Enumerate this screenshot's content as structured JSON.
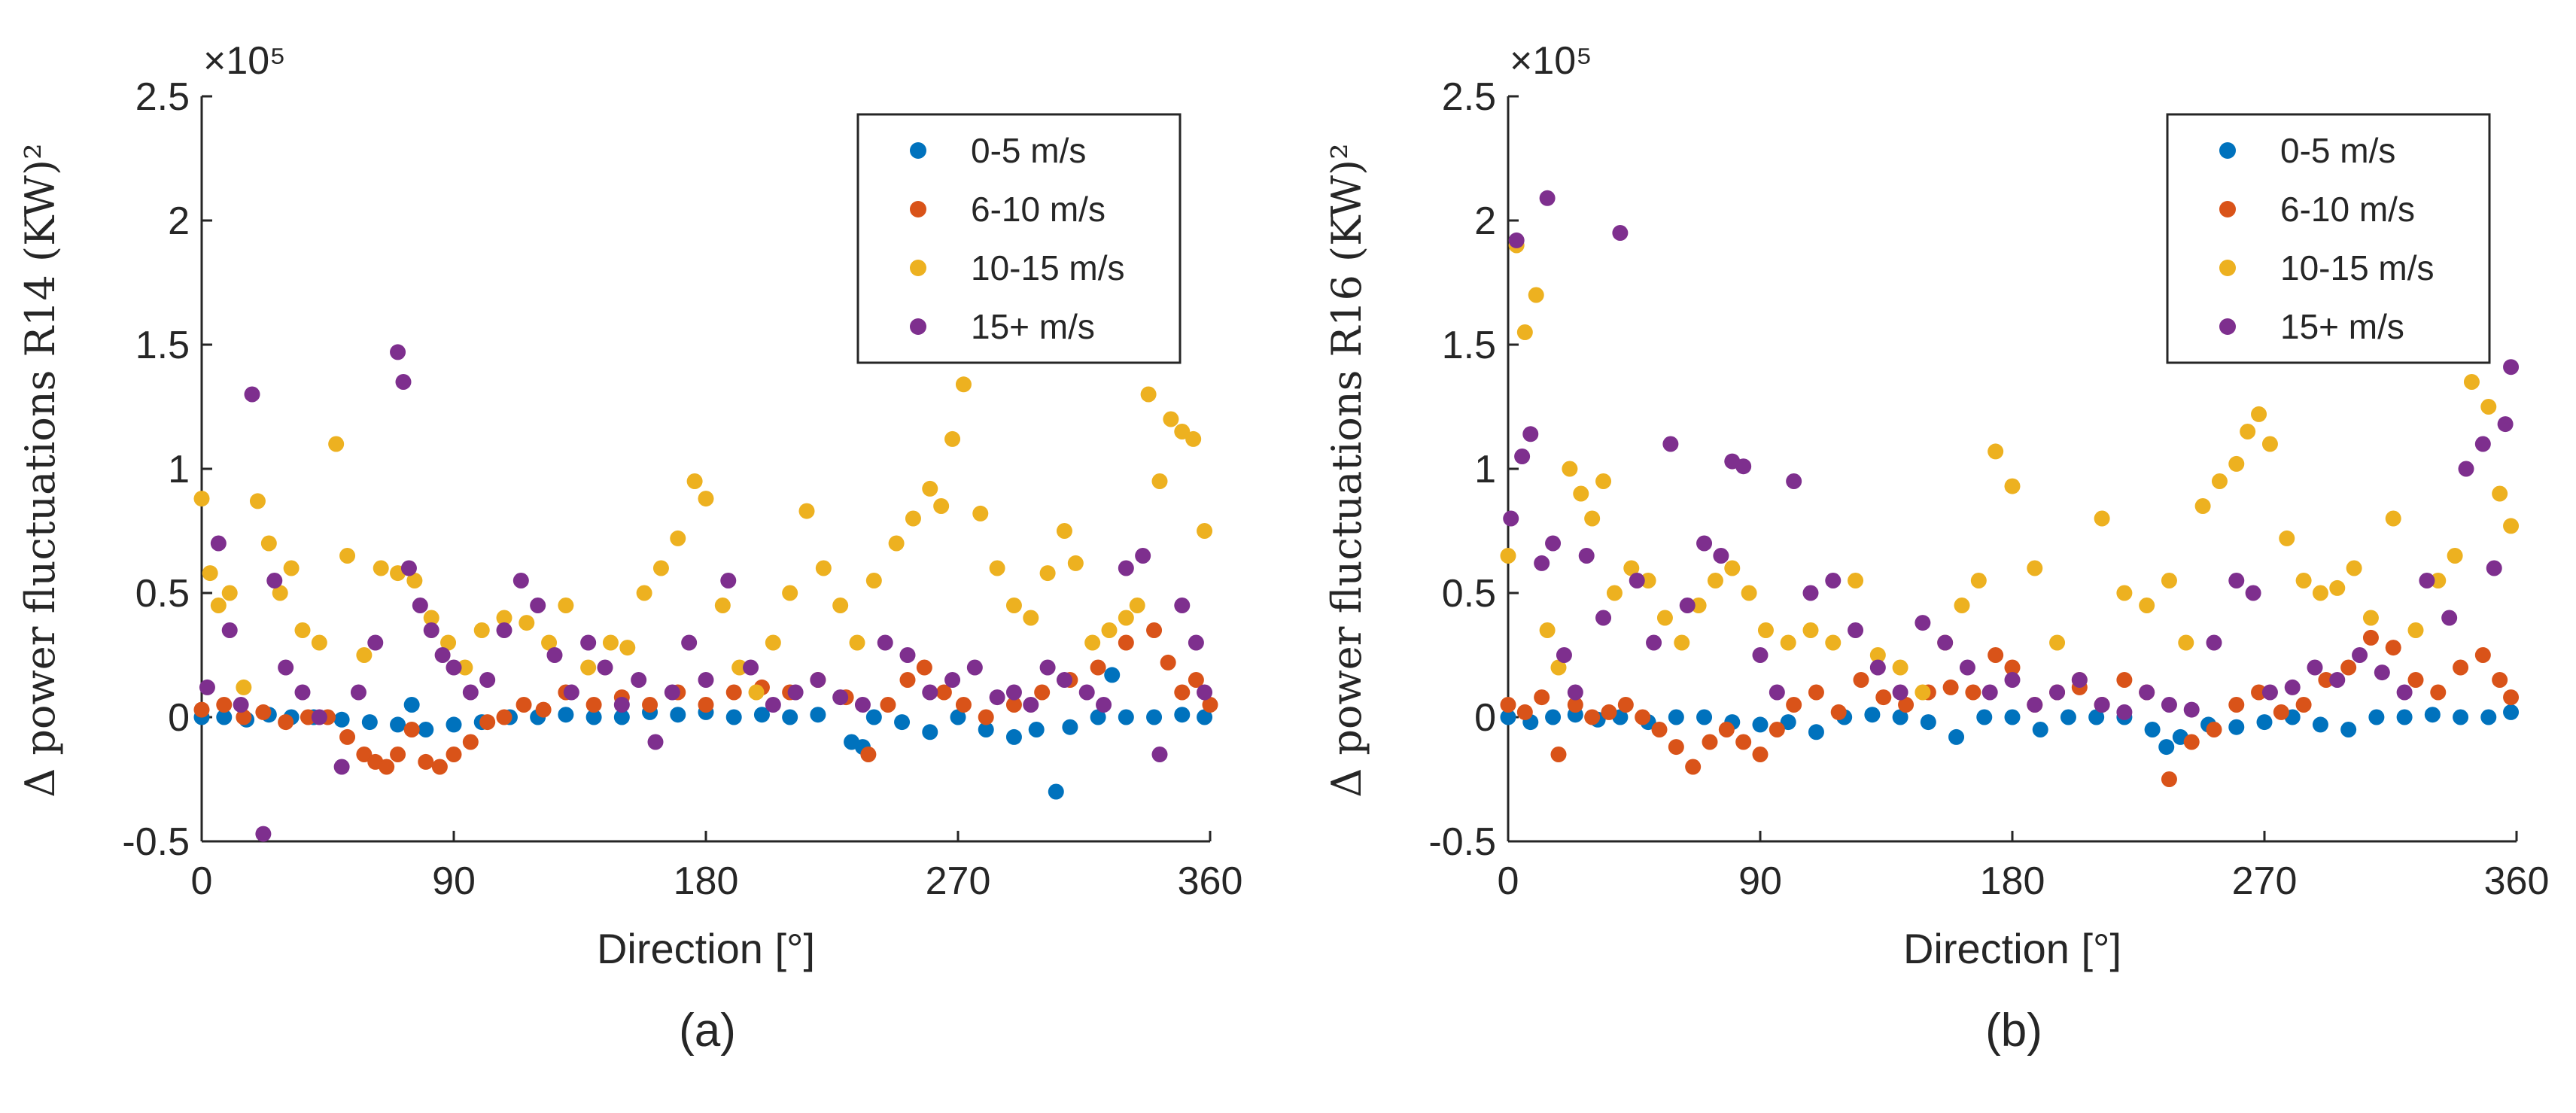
{
  "chart_data": [
    {
      "type": "scatter",
      "caption": "(a)",
      "xlabel": "Direction [°]",
      "ylabel": "Δ power fluctuations R14 (KW)²",
      "y_exponent_label": "×10⁵",
      "xlim": [
        0,
        360
      ],
      "ylim": [
        -0.5,
        2.5
      ],
      "xticks": [
        "0",
        "90",
        "180",
        "270",
        "360"
      ],
      "yticks": [
        "-0.5",
        "0",
        "0.5",
        "1",
        "1.5",
        "2",
        "2.5"
      ],
      "legend_position": "top-right",
      "series": [
        {
          "name": "0-5 m/s",
          "color": "#0072BD",
          "x": [
            0,
            8,
            16,
            24,
            32,
            40,
            50,
            60,
            70,
            75,
            80,
            90,
            100,
            110,
            120,
            130,
            140,
            150,
            160,
            170,
            180,
            190,
            200,
            210,
            220,
            232,
            236,
            240,
            250,
            260,
            270,
            280,
            290,
            298,
            305,
            310,
            320,
            325,
            330,
            340,
            350,
            358
          ],
          "y": [
            0,
            0,
            -0.01,
            0.01,
            0,
            0,
            -0.01,
            -0.02,
            -0.03,
            0.05,
            -0.05,
            -0.03,
            -0.02,
            0,
            0,
            0.01,
            0,
            0,
            0.02,
            0.01,
            0.02,
            0,
            0.01,
            0,
            0.01,
            -0.1,
            -0.12,
            0,
            -0.02,
            -0.06,
            0,
            -0.05,
            -0.08,
            -0.05,
            -0.3,
            -0.04,
            0,
            0.17,
            0,
            0,
            0.01,
            0
          ]
        },
        {
          "name": "6-10 m/s",
          "color": "#D95319",
          "x": [
            0,
            8,
            15,
            22,
            30,
            38,
            45,
            52,
            58,
            62,
            66,
            70,
            75,
            80,
            85,
            90,
            96,
            102,
            108,
            115,
            122,
            130,
            140,
            150,
            160,
            170,
            180,
            190,
            200,
            210,
            220,
            230,
            238,
            245,
            252,
            258,
            265,
            272,
            280,
            290,
            300,
            310,
            320,
            330,
            340,
            345,
            350,
            355,
            360
          ],
          "y": [
            0.03,
            0.05,
            0,
            0.02,
            -0.02,
            0,
            0,
            -0.08,
            -0.15,
            -0.18,
            -0.2,
            -0.15,
            -0.05,
            -0.18,
            -0.2,
            -0.15,
            -0.1,
            -0.02,
            0,
            0.05,
            0.03,
            0.1,
            0.05,
            0.08,
            0.05,
            0.1,
            0.05,
            0.1,
            0.12,
            0.1,
            0.15,
            0.08,
            -0.15,
            0.05,
            0.15,
            0.2,
            0.1,
            0.05,
            0,
            0.05,
            0.1,
            0.15,
            0.2,
            0.3,
            0.35,
            0.22,
            0.1,
            0.15,
            0.05
          ]
        },
        {
          "name": "10-15 m/s",
          "color": "#EDB120",
          "x": [
            0,
            3,
            6,
            10,
            15,
            20,
            24,
            28,
            32,
            36,
            42,
            48,
            52,
            58,
            64,
            70,
            76,
            82,
            88,
            94,
            100,
            108,
            116,
            124,
            130,
            138,
            146,
            152,
            158,
            164,
            170,
            176,
            180,
            186,
            192,
            198,
            204,
            210,
            216,
            222,
            228,
            234,
            240,
            248,
            254,
            260,
            264,
            268,
            272,
            278,
            284,
            290,
            296,
            302,
            308,
            312,
            318,
            324,
            330,
            334,
            338,
            342,
            346,
            350,
            354,
            358
          ],
          "y": [
            0.88,
            0.58,
            0.45,
            0.5,
            0.12,
            0.87,
            0.7,
            0.5,
            0.6,
            0.35,
            0.3,
            1.1,
            0.65,
            0.25,
            0.6,
            0.58,
            0.55,
            0.4,
            0.3,
            0.2,
            0.35,
            0.4,
            0.38,
            0.3,
            0.45,
            0.2,
            0.3,
            0.28,
            0.5,
            0.6,
            0.72,
            0.95,
            0.88,
            0.45,
            0.2,
            0.1,
            0.3,
            0.5,
            0.83,
            0.6,
            0.45,
            0.3,
            0.55,
            0.7,
            0.8,
            0.92,
            0.85,
            1.12,
            1.34,
            0.82,
            0.6,
            0.45,
            0.4,
            0.58,
            0.75,
            0.62,
            0.3,
            0.35,
            0.4,
            0.45,
            1.3,
            0.95,
            1.2,
            1.15,
            1.12,
            0.75
          ]
        },
        {
          "name": "15+ m/s",
          "color": "#7E2F8E",
          "x": [
            2,
            6,
            10,
            14,
            18,
            22,
            26,
            30,
            36,
            42,
            50,
            56,
            62,
            70,
            72,
            74,
            78,
            82,
            86,
            90,
            96,
            102,
            108,
            114,
            120,
            126,
            132,
            138,
            144,
            150,
            156,
            162,
            168,
            174,
            180,
            188,
            196,
            204,
            212,
            220,
            228,
            236,
            244,
            252,
            260,
            268,
            276,
            284,
            290,
            296,
            302,
            308,
            316,
            322,
            330,
            336,
            342,
            350,
            355,
            358
          ],
          "y": [
            0.12,
            0.7,
            0.35,
            0.05,
            1.3,
            -0.47,
            0.55,
            0.2,
            0.1,
            0,
            -0.2,
            0.1,
            0.3,
            1.47,
            1.35,
            0.6,
            0.45,
            0.35,
            0.25,
            0.2,
            0.1,
            0.15,
            0.35,
            0.55,
            0.45,
            0.25,
            0.1,
            0.3,
            0.2,
            0.05,
            0.15,
            -0.1,
            0.1,
            0.3,
            0.15,
            0.55,
            0.2,
            0.05,
            0.1,
            0.15,
            0.08,
            0.05,
            0.3,
            0.25,
            0.1,
            0.15,
            0.2,
            0.08,
            0.1,
            0.05,
            0.2,
            0.15,
            0.1,
            0.05,
            0.6,
            0.65,
            -0.15,
            0.45,
            0.3,
            0.1
          ]
        }
      ]
    },
    {
      "type": "scatter",
      "caption": "(b)",
      "xlabel": "Direction [°]",
      "ylabel": "Δ power fluctuations R16 (KW)²",
      "y_exponent_label": "×10⁵",
      "xlim": [
        0,
        360
      ],
      "ylim": [
        -0.5,
        2.5
      ],
      "xticks": [
        "0",
        "90",
        "180",
        "270",
        "360"
      ],
      "yticks": [
        "-0.5",
        "0",
        "0.5",
        "1",
        "1.5",
        "2",
        "2.5"
      ],
      "legend_position": "top-right",
      "series": [
        {
          "name": "0-5 m/s",
          "color": "#0072BD",
          "x": [
            0,
            8,
            16,
            24,
            32,
            40,
            50,
            60,
            70,
            80,
            90,
            100,
            110,
            120,
            130,
            140,
            150,
            160,
            170,
            180,
            190,
            200,
            210,
            220,
            230,
            235,
            240,
            250,
            260,
            270,
            280,
            290,
            300,
            310,
            320,
            330,
            340,
            350,
            358
          ],
          "y": [
            0,
            -0.02,
            0,
            0.01,
            -0.01,
            0,
            -0.02,
            0,
            0,
            -0.02,
            -0.03,
            -0.02,
            -0.06,
            0,
            0.01,
            0,
            -0.02,
            -0.08,
            0,
            0,
            -0.05,
            0,
            0,
            0,
            -0.05,
            -0.12,
            -0.08,
            -0.03,
            -0.04,
            -0.02,
            0,
            -0.03,
            -0.05,
            0,
            0,
            0.01,
            0,
            0,
            0.02
          ]
        },
        {
          "name": "6-10 m/s",
          "color": "#D95319",
          "x": [
            0,
            6,
            12,
            18,
            24,
            30,
            36,
            42,
            48,
            54,
            60,
            66,
            72,
            78,
            84,
            90,
            96,
            102,
            110,
            118,
            126,
            134,
            142,
            150,
            158,
            166,
            174,
            180,
            188,
            196,
            204,
            212,
            220,
            228,
            236,
            244,
            252,
            260,
            268,
            276,
            284,
            292,
            300,
            308,
            316,
            324,
            332,
            340,
            348,
            354,
            358
          ],
          "y": [
            0.05,
            0.02,
            0.08,
            -0.15,
            0.05,
            0,
            0.02,
            0.05,
            0,
            -0.05,
            -0.12,
            -0.2,
            -0.1,
            -0.05,
            -0.1,
            -0.15,
            -0.05,
            0.05,
            0.1,
            0.02,
            0.15,
            0.08,
            0.05,
            0.1,
            0.12,
            0.1,
            0.25,
            0.2,
            0.05,
            0.1,
            0.12,
            0.05,
            0.15,
            0.1,
            -0.25,
            -0.1,
            -0.05,
            0.05,
            0.1,
            0.02,
            0.05,
            0.15,
            0.2,
            0.32,
            0.28,
            0.15,
            0.1,
            0.2,
            0.25,
            0.15,
            0.08
          ]
        },
        {
          "name": "10-15 m/s",
          "color": "#EDB120",
          "x": [
            0,
            3,
            6,
            10,
            14,
            18,
            22,
            26,
            30,
            34,
            38,
            44,
            50,
            56,
            62,
            68,
            74,
            80,
            86,
            92,
            100,
            108,
            116,
            124,
            132,
            140,
            148,
            156,
            162,
            168,
            174,
            180,
            188,
            196,
            204,
            212,
            220,
            228,
            236,
            242,
            248,
            254,
            260,
            264,
            268,
            272,
            278,
            284,
            290,
            296,
            302,
            308,
            316,
            324,
            332,
            338,
            344,
            350,
            354,
            358
          ],
          "y": [
            0.65,
            1.9,
            1.55,
            1.7,
            0.35,
            0.2,
            1.0,
            0.9,
            0.8,
            0.95,
            0.5,
            0.6,
            0.55,
            0.4,
            0.3,
            0.45,
            0.55,
            0.6,
            0.5,
            0.35,
            0.3,
            0.35,
            0.3,
            0.55,
            0.25,
            0.2,
            0.1,
            0.3,
            0.45,
            0.55,
            1.07,
            0.93,
            0.6,
            0.3,
            0.15,
            0.8,
            0.5,
            0.45,
            0.55,
            0.3,
            0.85,
            0.95,
            1.02,
            1.15,
            1.22,
            1.1,
            0.72,
            0.55,
            0.5,
            0.52,
            0.6,
            0.4,
            0.8,
            0.35,
            0.55,
            0.65,
            1.35,
            1.25,
            0.9,
            0.77
          ]
        },
        {
          "name": "15+ m/s",
          "color": "#7E2F8E",
          "x": [
            1,
            3,
            5,
            8,
            12,
            14,
            16,
            20,
            24,
            28,
            34,
            40,
            46,
            52,
            58,
            64,
            70,
            76,
            80,
            84,
            90,
            96,
            102,
            108,
            116,
            124,
            132,
            140,
            148,
            156,
            164,
            172,
            180,
            188,
            196,
            204,
            212,
            220,
            228,
            236,
            244,
            252,
            260,
            266,
            272,
            280,
            288,
            296,
            304,
            312,
            320,
            328,
            336,
            342,
            348,
            352,
            356,
            358
          ],
          "y": [
            0.8,
            1.92,
            1.05,
            1.14,
            0.62,
            2.09,
            0.7,
            0.25,
            0.1,
            0.65,
            0.4,
            1.95,
            0.55,
            0.3,
            1.1,
            0.45,
            0.7,
            0.65,
            1.03,
            1.01,
            0.25,
            0.1,
            0.95,
            0.5,
            0.55,
            0.35,
            0.2,
            0.1,
            0.38,
            0.3,
            0.2,
            0.1,
            0.15,
            0.05,
            0.1,
            0.15,
            0.05,
            0.02,
            0.1,
            0.05,
            0.03,
            0.3,
            0.55,
            0.5,
            0.1,
            0.12,
            0.2,
            0.15,
            0.25,
            0.18,
            0.1,
            0.55,
            0.4,
            1.0,
            1.1,
            0.6,
            1.18,
            1.41
          ]
        }
      ]
    }
  ]
}
